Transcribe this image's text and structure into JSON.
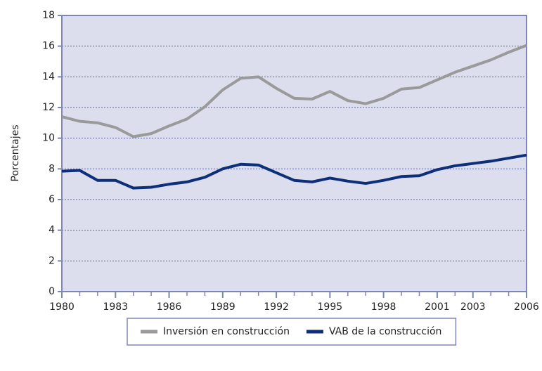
{
  "chart_data": {
    "type": "line",
    "y_label": "Porcentajes",
    "x": [
      1980,
      1981,
      1982,
      1983,
      1984,
      1985,
      1986,
      1987,
      1988,
      1989,
      1990,
      1991,
      1992,
      1993,
      1994,
      1995,
      1996,
      1997,
      1998,
      1999,
      2000,
      2001,
      2002,
      2003,
      2004,
      2005,
      2006
    ],
    "series": [
      {
        "name": "Inversión en construcción",
        "color": "#9a9a9a",
        "values": [
          11.4,
          11.1,
          11.0,
          10.7,
          10.1,
          10.3,
          10.8,
          11.25,
          12.05,
          13.15,
          13.9,
          14.0,
          13.25,
          12.6,
          12.55,
          13.05,
          12.45,
          12.25,
          12.6,
          13.2,
          13.3,
          13.8,
          14.3,
          14.7,
          15.1,
          15.6,
          16.05
        ]
      },
      {
        "name": "VAB de la construcción",
        "color": "#0d2f7a",
        "values": [
          7.85,
          7.9,
          7.25,
          7.25,
          6.75,
          6.8,
          7.0,
          7.15,
          7.45,
          8.0,
          8.3,
          8.25,
          7.75,
          7.25,
          7.15,
          7.4,
          7.2,
          7.05,
          7.25,
          7.5,
          7.55,
          7.95,
          8.2,
          8.35,
          8.5,
          8.7,
          8.9
        ]
      }
    ],
    "xlim": [
      1980,
      2006
    ],
    "xticks": [
      1980,
      1983,
      1986,
      1989,
      1992,
      1995,
      1998,
      2001,
      2003,
      2006
    ],
    "ylim": [
      0,
      18
    ],
    "yticks": [
      0,
      2,
      4,
      6,
      8,
      10,
      12,
      14,
      16,
      18
    ],
    "grid": true,
    "legend": "bottom"
  }
}
